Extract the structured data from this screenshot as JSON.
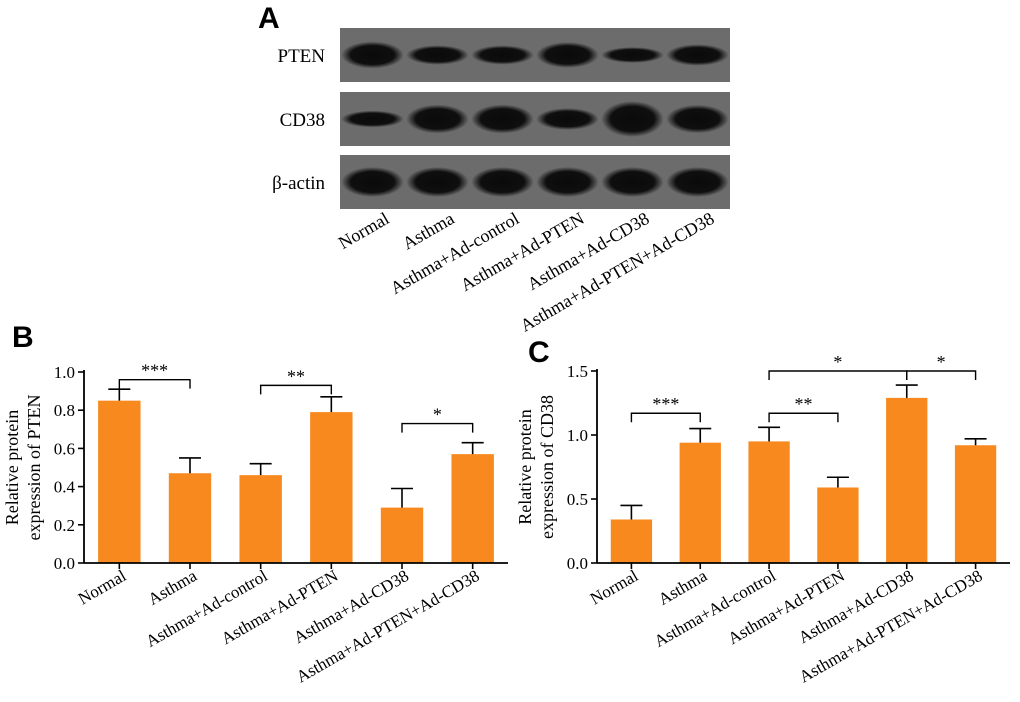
{
  "figure": {
    "panels": [
      "A",
      "B",
      "C"
    ]
  },
  "blot": {
    "rows": [
      "PTEN",
      "CD38",
      "β-actin"
    ],
    "lanes": [
      "Normal",
      "Asthma",
      "Asthma+Ad-control",
      "Asthma+Ad-PTEN",
      "Asthma+Ad-CD38",
      "Asthma+Ad-PTEN+Ad-CD38"
    ],
    "intensity": [
      [
        0.85,
        0.47,
        0.46,
        0.79,
        0.29,
        0.57
      ],
      [
        0.34,
        0.94,
        0.95,
        0.59,
        1.29,
        0.92
      ],
      [
        1.0,
        1.0,
        1.0,
        1.0,
        1.0,
        1.0
      ]
    ]
  },
  "colors": {
    "bar": "#F7891F",
    "axis": "#000000",
    "blot_bg": "#6c6c6c",
    "band": "#0a0a0a"
  },
  "chart_data": [
    {
      "type": "bar",
      "panel": "B",
      "title": "",
      "xlabel": "",
      "ylabel": "Relative protein expression of PTEN",
      "ylabel_lines": [
        "Relative protein",
        "expression of PTEN"
      ],
      "categories": [
        "Normal",
        "Asthma",
        "Asthma+Ad-control",
        "Asthma+Ad-PTEN",
        "Asthma+Ad-CD38",
        "Asthma+Ad-PTEN+Ad-CD38"
      ],
      "values": [
        0.85,
        0.47,
        0.46,
        0.79,
        0.29,
        0.57
      ],
      "errors": [
        0.06,
        0.08,
        0.06,
        0.08,
        0.1,
        0.06
      ],
      "ylim": [
        0,
        1.0
      ],
      "yticks": [
        0.0,
        0.2,
        0.4,
        0.6,
        0.8,
        1.0
      ],
      "ytick_labels": [
        "0.0",
        "0.2",
        "0.4",
        "0.6",
        "0.8",
        "1.0"
      ],
      "significance": [
        {
          "from": 0,
          "to": 1,
          "label": "***",
          "y": 0.96
        },
        {
          "from": 2,
          "to": 3,
          "label": "**",
          "y": 0.93
        },
        {
          "from": 4,
          "to": 5,
          "label": "*",
          "y": 0.73
        }
      ],
      "grid": false,
      "legend": "none"
    },
    {
      "type": "bar",
      "panel": "C",
      "title": "",
      "xlabel": "",
      "ylabel": "Relative protein expression of CD38",
      "ylabel_lines": [
        "Relative protein",
        "expression of CD38"
      ],
      "categories": [
        "Normal",
        "Asthma",
        "Asthma+Ad-control",
        "Asthma+Ad-PTEN",
        "Asthma+Ad-CD38",
        "Asthma+Ad-PTEN+Ad-CD38"
      ],
      "values": [
        0.34,
        0.94,
        0.95,
        0.59,
        1.29,
        0.92
      ],
      "errors": [
        0.11,
        0.11,
        0.11,
        0.08,
        0.1,
        0.05
      ],
      "ylim": [
        0,
        1.5
      ],
      "yticks": [
        0.0,
        0.5,
        1.0,
        1.5
      ],
      "ytick_labels": [
        "0.0",
        "0.5",
        "1.0",
        "1.5"
      ],
      "significance": [
        {
          "from": 0,
          "to": 1,
          "label": "***",
          "y": 1.17
        },
        {
          "from": 2,
          "to": 3,
          "label": "**",
          "y": 1.17
        },
        {
          "from": 2,
          "to": 4,
          "label": "*",
          "y": 1.5
        },
        {
          "from": 4,
          "to": 5,
          "label": "*",
          "y": 1.5
        }
      ],
      "grid": false,
      "legend": "none"
    }
  ]
}
